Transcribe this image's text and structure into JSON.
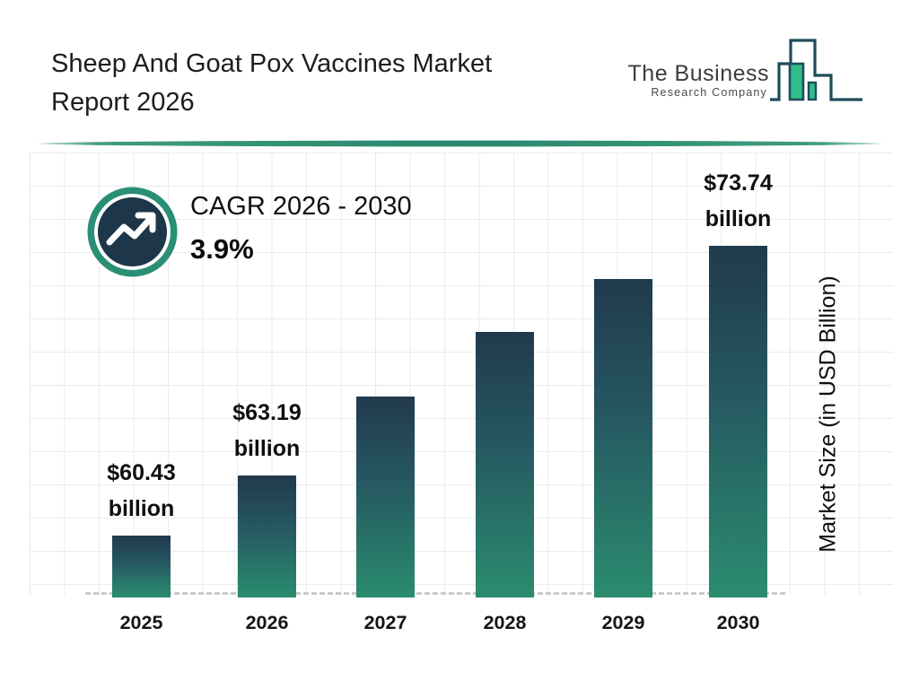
{
  "header": {
    "title_line1": "Sheep And Goat Pox Vaccines Market",
    "title_line2": "Report 2026",
    "logo": {
      "name": "The Business",
      "subname": "Research Company"
    }
  },
  "cagr": {
    "label": "CAGR 2026 - 2030",
    "value": "3.9%"
  },
  "chart_data": {
    "type": "bar",
    "title": "Sheep And Goat Pox Vaccines Market Report 2026",
    "categories": [
      "2025",
      "2026",
      "2027",
      "2028",
      "2029",
      "2030"
    ],
    "values": [
      60.43,
      63.19,
      66.8,
      69.8,
      72.2,
      73.74
    ],
    "value_labels": [
      "$60.43 billion",
      "$63.19 billion",
      null,
      null,
      null,
      "$73.74 billion"
    ],
    "labeled_points_only": "2025, 2026 and 2030 carry visible data labels; middle values estimated from bar heights",
    "xlabel": "",
    "ylabel": "Market Size (in USD Billion)",
    "value_axis": {
      "baseline_value": 57.6,
      "zero_based": false,
      "ticks_visible": false
    },
    "grid": true,
    "legend_position": "none",
    "cagr_annotation": {
      "period": "2026 - 2030",
      "rate_percent": 3.9
    }
  },
  "colors": {
    "bar_gradient_top": "#213A4D",
    "bar_gradient_bottom": "#2B8C6F",
    "divider_teal": "#2A8F74",
    "badge_ring_green": "#2A8F74",
    "badge_disc_navy": "#1D3649",
    "grid_line": "#EAEBEE",
    "baseline_dash": "#CBCBCB",
    "logo_outline": "#1E4D5C",
    "logo_fill_green": "#2FBD8B",
    "text_dark": "#1D1D1D"
  }
}
